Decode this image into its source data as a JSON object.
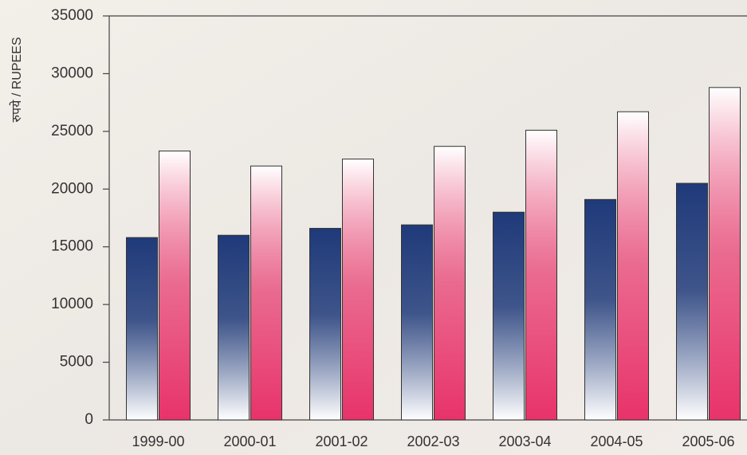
{
  "chart_data": {
    "type": "bar",
    "y_label": "रुपये / RUPEES",
    "categories": [
      "1999-00",
      "2000-01",
      "2001-02",
      "2002-03",
      "2003-04",
      "2004-05",
      "2005-06"
    ],
    "series": [
      {
        "color": "#1f3a7a",
        "values": [
          15800,
          16000,
          16600,
          16900,
          18000,
          19100,
          20500
        ]
      },
      {
        "color": "#e8336a",
        "values": [
          23300,
          22000,
          22600,
          23700,
          25100,
          26700,
          28800
        ]
      }
    ],
    "ylim": [
      0,
      35000
    ],
    "yticks": [
      0,
      5000,
      10000,
      15000,
      20000,
      25000,
      30000,
      35000
    ],
    "grid": false
  }
}
